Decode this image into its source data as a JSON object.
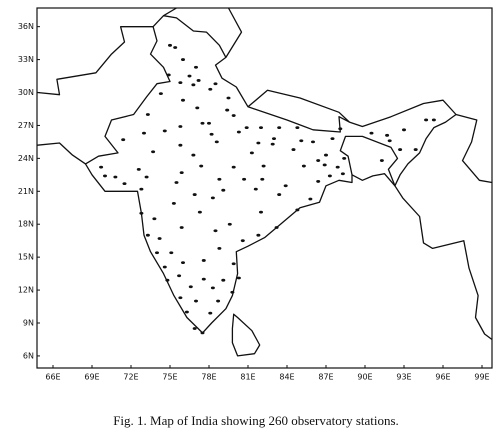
{
  "map": {
    "type": "map",
    "caption": "Fig. 1. Map of India showing 260 observatory stations.",
    "xlim": [
      64.77,
      99.77
    ],
    "ylim": [
      4.9,
      37.7
    ],
    "xticks": [
      {
        "value": 66,
        "label": "66E"
      },
      {
        "value": 69,
        "label": "69E"
      },
      {
        "value": 72,
        "label": "72E"
      },
      {
        "value": 75,
        "label": "75E"
      },
      {
        "value": 78,
        "label": "78E"
      },
      {
        "value": 81,
        "label": "81E"
      },
      {
        "value": 84,
        "label": "84E"
      },
      {
        "value": 87,
        "label": "87E"
      },
      {
        "value": 90,
        "label": "90E"
      },
      {
        "value": 93,
        "label": "93E"
      },
      {
        "value": 96,
        "label": "96E"
      },
      {
        "value": 99,
        "label": "99E"
      }
    ],
    "yticks": [
      {
        "value": 6,
        "label": "6N"
      },
      {
        "value": 9,
        "label": "9N"
      },
      {
        "value": 12,
        "label": "12N"
      },
      {
        "value": 15,
        "label": "15N"
      },
      {
        "value": 18,
        "label": "18N"
      },
      {
        "value": 21,
        "label": "21N"
      },
      {
        "value": 24,
        "label": "24N"
      },
      {
        "value": 27,
        "label": "27N"
      },
      {
        "value": 30,
        "label": "30N"
      },
      {
        "value": 33,
        "label": "33N"
      },
      {
        "value": 36,
        "label": "36N"
      }
    ],
    "stations": [
      [
        75,
        34.3
      ],
      [
        75.4,
        34.1
      ],
      [
        76,
        33
      ],
      [
        77,
        32.3
      ],
      [
        77.2,
        31.1
      ],
      [
        76.5,
        31.5
      ],
      [
        78.1,
        30.3
      ],
      [
        79.5,
        29.5
      ],
      [
        78.5,
        30.8
      ],
      [
        74.9,
        31.6
      ],
      [
        75.8,
        30.9
      ],
      [
        76.8,
        30.7
      ],
      [
        77.1,
        28.6
      ],
      [
        76,
        29.3
      ],
      [
        74.3,
        29.9
      ],
      [
        73.3,
        28
      ],
      [
        75.8,
        26.9
      ],
      [
        74.6,
        26.5
      ],
      [
        73,
        26.3
      ],
      [
        71.4,
        25.7
      ],
      [
        73.7,
        24.6
      ],
      [
        75.8,
        25.2
      ],
      [
        77.5,
        27.2
      ],
      [
        78,
        27.2
      ],
      [
        79.4,
        28.4
      ],
      [
        80.9,
        26.8
      ],
      [
        82,
        26.8
      ],
      [
        83.4,
        26.8
      ],
      [
        82.9,
        25.3
      ],
      [
        81.8,
        25.4
      ],
      [
        80.3,
        26.4
      ],
      [
        78.6,
        25.5
      ],
      [
        79.9,
        27.9
      ],
      [
        83,
        25.8
      ],
      [
        85.1,
        25.6
      ],
      [
        86,
        25.5
      ],
      [
        84.8,
        26.8
      ],
      [
        87.5,
        25.8
      ],
      [
        85.3,
        23.3
      ],
      [
        86.4,
        23.8
      ],
      [
        84.5,
        24.8
      ],
      [
        87,
        24.3
      ],
      [
        88.3,
        22.6
      ],
      [
        87.3,
        22.4
      ],
      [
        88.4,
        24
      ],
      [
        88.1,
        26.7
      ],
      [
        87.9,
        23.2
      ],
      [
        86.9,
        23.4
      ],
      [
        91.7,
        26.1
      ],
      [
        93,
        26.6
      ],
      [
        94.7,
        27.5
      ],
      [
        91.9,
        25.6
      ],
      [
        93.9,
        24.8
      ],
      [
        91.3,
        23.8
      ],
      [
        92.7,
        24.8
      ],
      [
        90.5,
        26.3
      ],
      [
        95.3,
        27.5
      ],
      [
        69.7,
        23.2
      ],
      [
        70.8,
        22.3
      ],
      [
        72.6,
        23
      ],
      [
        73.2,
        22.3
      ],
      [
        72.8,
        21.2
      ],
      [
        70,
        22.4
      ],
      [
        71.5,
        21.7
      ],
      [
        75.9,
        22.7
      ],
      [
        77.4,
        23.3
      ],
      [
        79.9,
        23.2
      ],
      [
        78.2,
        26.2
      ],
      [
        81.3,
        24.5
      ],
      [
        76.8,
        24.3
      ],
      [
        78.8,
        22.1
      ],
      [
        80.7,
        22.1
      ],
      [
        75.5,
        21.8
      ],
      [
        82.2,
        23.3
      ],
      [
        81.6,
        21.2
      ],
      [
        82.1,
        22.1
      ],
      [
        83.9,
        21.5
      ],
      [
        85.8,
        20.3
      ],
      [
        84.8,
        19.3
      ],
      [
        86.4,
        21.9
      ],
      [
        82,
        19.1
      ],
      [
        83.4,
        20.7
      ],
      [
        72.8,
        19
      ],
      [
        73.8,
        18.5
      ],
      [
        75.3,
        19.9
      ],
      [
        79.1,
        21.1
      ],
      [
        76.9,
        20.7
      ],
      [
        77.3,
        19.1
      ],
      [
        74.2,
        16.7
      ],
      [
        75.9,
        17.7
      ],
      [
        73.3,
        17
      ],
      [
        78.3,
        20.4
      ],
      [
        78.5,
        17.4
      ],
      [
        79.6,
        18
      ],
      [
        80.6,
        16.5
      ],
      [
        83.2,
        17.7
      ],
      [
        79.9,
        14.4
      ],
      [
        77.6,
        14.7
      ],
      [
        78.8,
        15.8
      ],
      [
        81.8,
        17
      ],
      [
        74,
        15.4
      ],
      [
        74.8,
        12.9
      ],
      [
        75.1,
        15.4
      ],
      [
        76.6,
        12.3
      ],
      [
        77.6,
        13
      ],
      [
        76,
        14.5
      ],
      [
        75.7,
        13.3
      ],
      [
        74.6,
        14.1
      ],
      [
        75.8,
        11.3
      ],
      [
        76.3,
        10
      ],
      [
        76.9,
        8.5
      ],
      [
        80.3,
        13.1
      ],
      [
        79.1,
        12.9
      ],
      [
        78.7,
        11
      ],
      [
        77,
        11
      ],
      [
        78.1,
        9.9
      ],
      [
        79.8,
        11.8
      ],
      [
        77.5,
        8.1
      ],
      [
        78.3,
        12.2
      ]
    ]
  }
}
